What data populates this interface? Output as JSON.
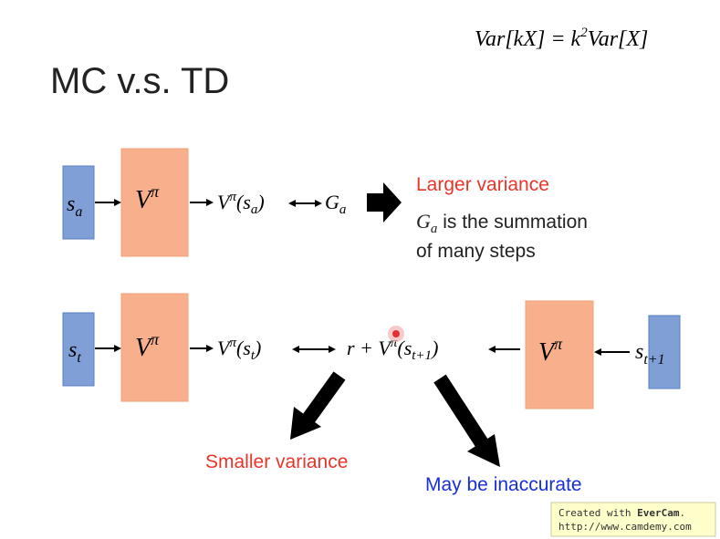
{
  "header": {
    "formula": [
      "Var[kX] = k",
      "2",
      "Var[X]"
    ],
    "title": "MC v.s. TD"
  },
  "mc": {
    "state": [
      "s",
      "a"
    ],
    "model": [
      "V",
      "π"
    ],
    "estimate": [
      "V",
      "π",
      "(s",
      "a",
      ")"
    ],
    "target": [
      "G",
      "a"
    ],
    "note_title": "Larger variance",
    "note_symbol": [
      "G",
      "a"
    ],
    "note_line1": " is the summation",
    "note_line2": "of many steps"
  },
  "td": {
    "state": [
      "s",
      "t"
    ],
    "model": [
      "V",
      "π"
    ],
    "estimate": [
      "V",
      "π",
      "(s",
      "t",
      ")"
    ],
    "target": [
      "r + V",
      "π",
      "(s",
      "t+1",
      ")"
    ],
    "next_model": [
      "V",
      "π"
    ],
    "next_state": [
      "s",
      "t+1"
    ],
    "label_left": "Smaller variance",
    "label_right": "May be inaccurate"
  },
  "watermark": {
    "line1_prefix": "Created with ",
    "line1_brand": "EverCam",
    "line1_end": ".",
    "line2": "http://www.camdemy.com"
  }
}
